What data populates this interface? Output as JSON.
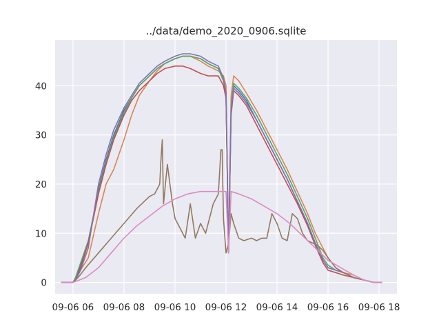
{
  "chart_data": {
    "type": "line",
    "title": "../data/demo_2020_0906.sqlite",
    "xlabel": "",
    "ylabel": "",
    "x_tick_labels": [
      "09-06 06",
      "09-06 08",
      "09-06 10",
      "09-06 12",
      "09-06 14",
      "09-06 16",
      "09-06 18"
    ],
    "x_tick_hours": [
      6,
      8,
      10,
      12,
      14,
      16,
      18
    ],
    "xlim": [
      5.3,
      18.7
    ],
    "ylim": [
      -2.3,
      49.3
    ],
    "y_ticks": [
      0,
      10,
      20,
      30,
      40
    ],
    "grid": true,
    "background_color": "#eaeaf2",
    "series": [
      {
        "color": "#4c72b0",
        "x": [
          5.55,
          6.0,
          6.1,
          6.3,
          6.6,
          7.0,
          7.3,
          7.6,
          8.0,
          8.3,
          8.6,
          9.0,
          9.3,
          9.6,
          10.0,
          10.3,
          10.6,
          11.0,
          11.3,
          11.7,
          11.9,
          12.0,
          12.1,
          12.2,
          12.3,
          12.5,
          12.8,
          13.2,
          13.6,
          14.0,
          14.4,
          14.8,
          15.2,
          15.5,
          15.8,
          16.0,
          16.3,
          16.6,
          17.0,
          17.4,
          17.8,
          18.1
        ],
        "y": [
          0,
          0,
          0.5,
          3.5,
          8,
          19,
          25,
          30,
          35,
          37.5,
          40,
          42,
          43.5,
          44.5,
          45.5,
          46,
          46,
          45.5,
          44.5,
          43.5,
          41,
          38,
          6,
          35,
          40,
          39,
          37,
          33,
          29,
          25,
          21,
          16.5,
          12,
          8,
          4.5,
          3,
          2.5,
          2,
          1,
          0.5,
          0,
          0
        ]
      },
      {
        "color": "#dd8452",
        "x": [
          5.55,
          6.0,
          6.1,
          6.3,
          6.6,
          7.0,
          7.3,
          7.6,
          8.0,
          8.3,
          8.6,
          9.0,
          9.3,
          9.6,
          10.0,
          10.3,
          10.6,
          11.0,
          11.3,
          11.7,
          11.9,
          12.0,
          12.1,
          12.2,
          12.3,
          12.5,
          12.8,
          13.2,
          13.6,
          14.0,
          14.4,
          14.8,
          15.2,
          15.5,
          15.8,
          16.0,
          16.3,
          16.6,
          17.0,
          17.4,
          17.8,
          18.1
        ],
        "y": [
          0,
          0,
          0.5,
          2.5,
          5,
          14,
          20,
          23,
          29,
          34,
          38,
          41,
          43,
          44.5,
          45.5,
          46,
          46,
          45,
          44,
          43,
          42,
          40,
          7,
          38,
          42,
          41,
          38.5,
          35,
          31,
          27,
          23,
          18.5,
          14,
          10,
          7,
          5,
          3,
          2,
          1.5,
          0.5,
          0,
          0
        ]
      },
      {
        "color": "#55a868",
        "x": [
          5.55,
          6.0,
          6.1,
          6.3,
          6.6,
          7.0,
          7.3,
          7.6,
          8.0,
          8.3,
          8.6,
          9.0,
          9.3,
          9.6,
          10.0,
          10.3,
          10.6,
          11.0,
          11.3,
          11.7,
          11.9,
          12.0,
          12.1,
          12.2,
          12.3,
          12.5,
          12.8,
          13.2,
          13.6,
          14.0,
          14.4,
          14.8,
          15.2,
          15.5,
          15.8,
          16.0,
          16.3,
          16.6,
          17.0,
          17.4,
          17.8,
          18.1
        ],
        "y": [
          0,
          0,
          1,
          4,
          8.5,
          18.5,
          24.5,
          29.5,
          34.5,
          37.5,
          40,
          42,
          43.5,
          44.5,
          45.5,
          46,
          46,
          45.5,
          44.5,
          43.5,
          41,
          38.5,
          6,
          36,
          40.5,
          39.5,
          37.5,
          34,
          30,
          26,
          22,
          17.5,
          13,
          9,
          5,
          3.5,
          2.5,
          2,
          1,
          0.5,
          0,
          0
        ]
      },
      {
        "color": "#c44e52",
        "x": [
          5.55,
          6.0,
          6.1,
          6.3,
          6.6,
          7.0,
          7.3,
          7.6,
          8.0,
          8.3,
          8.6,
          9.0,
          9.3,
          9.6,
          10.0,
          10.3,
          10.6,
          11.0,
          11.3,
          11.7,
          11.9,
          12.0,
          12.1,
          12.2,
          12.3,
          12.5,
          12.8,
          13.2,
          13.6,
          14.0,
          14.4,
          14.8,
          15.2,
          15.5,
          15.8,
          16.0,
          16.3,
          16.6,
          17.0,
          17.4,
          17.8,
          18.1
        ],
        "y": [
          0,
          0,
          0.5,
          3,
          8,
          18,
          24,
          29,
          34,
          37,
          39,
          41,
          42.5,
          43.5,
          44,
          44,
          43.5,
          42.5,
          42,
          42,
          40,
          37.5,
          6,
          34,
          39,
          38,
          36,
          32,
          28,
          24,
          20,
          16,
          11.5,
          7.5,
          4,
          2.5,
          2,
          1.5,
          1,
          0.5,
          0,
          0
        ]
      },
      {
        "color": "#8172b3",
        "x": [
          5.55,
          6.0,
          6.1,
          6.3,
          6.6,
          7.0,
          7.3,
          7.6,
          8.0,
          8.3,
          8.6,
          9.0,
          9.3,
          9.6,
          10.0,
          10.3,
          10.6,
          11.0,
          11.3,
          11.7,
          11.9,
          12.0,
          12.1,
          12.2,
          12.3,
          12.5,
          12.8,
          13.2,
          13.6,
          14.0,
          14.4,
          14.8,
          15.2,
          15.5,
          15.8,
          16.0,
          16.3,
          16.6,
          17.0,
          17.4,
          17.8,
          18.1
        ],
        "y": [
          0,
          0,
          0.5,
          2.5,
          7,
          20,
          26,
          31,
          35.5,
          38,
          40.5,
          42.5,
          44,
          45,
          46,
          46.5,
          46.5,
          46,
          45,
          44,
          41.5,
          38.5,
          6,
          35,
          39.5,
          38.5,
          36.5,
          33,
          29,
          25,
          21,
          16.5,
          12,
          8,
          4.5,
          3,
          2.5,
          2,
          1,
          0.5,
          0,
          0
        ]
      },
      {
        "color": "#937860",
        "x": [
          5.55,
          6.0,
          6.2,
          6.5,
          7.0,
          7.5,
          8.0,
          8.5,
          9.0,
          9.2,
          9.4,
          9.45,
          9.5,
          9.55,
          9.7,
          9.9,
          10.0,
          10.2,
          10.4,
          10.6,
          10.8,
          11.0,
          11.2,
          11.5,
          11.7,
          11.8,
          11.85,
          11.9,
          12.0,
          12.1,
          12.2,
          12.3,
          12.5,
          12.7,
          13.0,
          13.2,
          13.4,
          13.6,
          13.8,
          14.0,
          14.2,
          14.4,
          14.6,
          14.8,
          15.0,
          15.2,
          15.4,
          15.6,
          15.8,
          16.0,
          16.3,
          16.6,
          17.0,
          17.4,
          17.8,
          18.1
        ],
        "y": [
          0,
          0,
          1,
          3,
          6,
          9,
          12,
          15,
          17.5,
          18,
          20,
          25,
          29,
          16,
          24,
          16,
          13,
          11,
          9,
          16,
          9,
          12,
          10,
          16,
          18,
          27,
          27,
          13,
          6,
          8,
          14,
          12,
          9,
          8.5,
          9,
          8.5,
          9,
          9,
          14,
          12,
          9,
          8.5,
          14,
          13,
          10,
          8.5,
          8,
          7.5,
          6.5,
          5,
          3,
          2,
          1,
          0.5,
          0,
          0
        ]
      },
      {
        "color": "#da8bc3",
        "x": [
          5.55,
          6.0,
          6.5,
          7.0,
          7.5,
          8.0,
          8.5,
          9.0,
          9.5,
          10.0,
          10.5,
          11.0,
          11.5,
          12.0,
          12.1,
          12.2,
          12.5,
          13.0,
          13.5,
          14.0,
          14.5,
          15.0,
          15.5,
          16.0,
          16.5,
          17.0,
          17.4,
          17.8,
          18.1
        ],
        "y": [
          0,
          0,
          1,
          3,
          6,
          9,
          11.5,
          13.5,
          15.5,
          17,
          18,
          18.5,
          18.5,
          18.5,
          6,
          18.5,
          18,
          17,
          15.5,
          14,
          12,
          9.5,
          7,
          4.5,
          3,
          1.5,
          0.5,
          0,
          0
        ]
      }
    ]
  }
}
